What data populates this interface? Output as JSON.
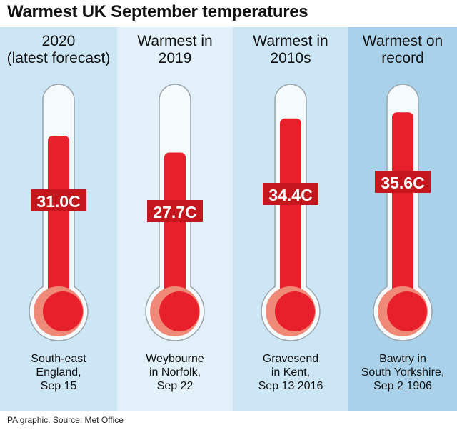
{
  "title": "Warmest UK September temperatures",
  "source": "PA graphic. Source: Met Office",
  "colors": {
    "mercury": "#e8202c",
    "bulb_shade": "#f08a78",
    "tube_fill": "#f5fafd",
    "label_bg": "#c4161c",
    "label_text": "#ffffff"
  },
  "panels": [
    {
      "heading": [
        "2020",
        "(latest forecast)"
      ],
      "value_label": "31.0C",
      "location": [
        "South-east",
        "England,",
        "Sep 15"
      ],
      "background": "#cde6f5"
    },
    {
      "heading": [
        "Warmest in",
        "2019"
      ],
      "value_label": "27.7C",
      "location": [
        "Weybourne",
        "in Norfolk,",
        "Sep 22"
      ],
      "background": "#e1f0f9"
    },
    {
      "heading": [
        "Warmest in",
        "2010s"
      ],
      "value_label": "34.4C",
      "location": [
        "Gravesend",
        "in Kent,",
        "Sep 13 2016"
      ],
      "background": "#cde6f5"
    },
    {
      "heading": [
        "Warmest on",
        "record"
      ],
      "value_label": "35.6C",
      "location": [
        "Bawtry in",
        "South Yorkshire,",
        "Sep 2 1906"
      ],
      "background": "#a9d1ea"
    }
  ],
  "chart_data": {
    "type": "bar",
    "title": "Warmest UK September temperatures",
    "categories": [
      "2020 (latest forecast)",
      "Warmest in 2019",
      "Warmest in 2010s",
      "Warmest on record"
    ],
    "values": [
      31.0,
      27.7,
      34.4,
      35.6
    ],
    "data_labels": [
      "31.0C",
      "27.7C",
      "34.4C",
      "35.6C"
    ],
    "unit": "C"
  }
}
